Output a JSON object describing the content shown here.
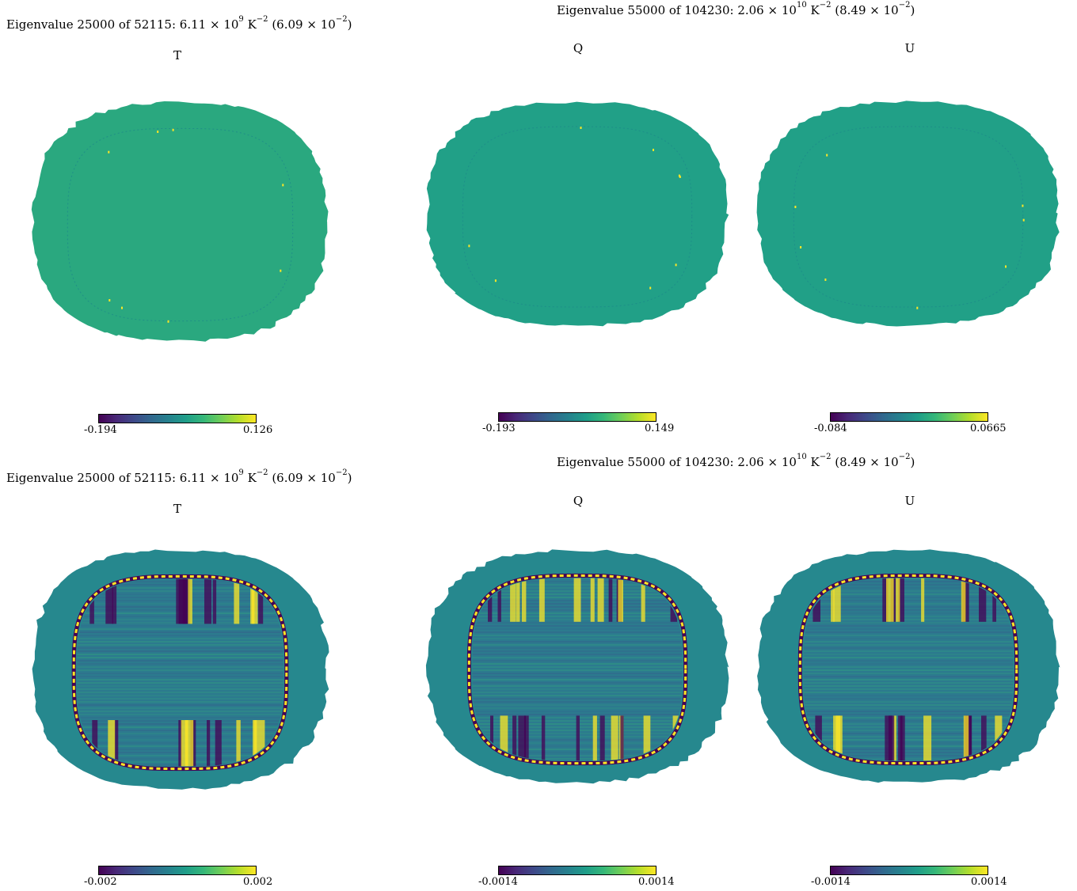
{
  "titles": {
    "row1_left": {
      "text": "Eigenvalue 25000 of 52115: 6.11",
      "times": "×",
      "base1": "10",
      "exp1": "9",
      "unit": "K",
      "exp_unit": "−2",
      "paren_open": "(6.09",
      "times2": "×",
      "base2": "10",
      "exp2": "−2",
      "paren_close": ")"
    },
    "row1_right": {
      "text": "Eigenvalue 55000 of 104230: 2.06",
      "times": "×",
      "base1": "10",
      "exp1": "10",
      "unit": "K",
      "exp_unit": "−2",
      "paren_open": "(8.49",
      "times2": "×",
      "base2": "10",
      "exp2": "−2",
      "paren_close": ")"
    },
    "row2_left": {
      "text": "Eigenvalue 25000 of 52115: 6.11",
      "times": "×",
      "base1": "10",
      "exp1": "9",
      "unit": "K",
      "exp_unit": "−2",
      "paren_open": "(6.09",
      "times2": "×",
      "base2": "10",
      "exp2": "−2",
      "paren_close": ")"
    },
    "row2_right": {
      "text": "Eigenvalue 55000 of 104230: 2.06",
      "times": "×",
      "base1": "10",
      "exp1": "10",
      "unit": "K",
      "exp_unit": "−2",
      "paren_open": "(8.49",
      "times2": "×",
      "base2": "10",
      "exp2": "−2",
      "paren_close": ")"
    }
  },
  "panels": {
    "r1_T": {
      "label": "T",
      "min": "-0.194",
      "max": "0.126"
    },
    "r1_Q": {
      "label": "Q",
      "min": "-0.193",
      "max": "0.149"
    },
    "r1_U": {
      "label": "U",
      "min": "-0.084",
      "max": "0.0665"
    },
    "r2_T": {
      "label": "T",
      "min": "-0.002",
      "max": "0.002"
    },
    "r2_Q": {
      "label": "Q",
      "min": "-0.0014",
      "max": "0.0014"
    },
    "r2_U": {
      "label": "U",
      "min": "-0.0014",
      "max": "0.0014"
    }
  },
  "colormap": "viridis",
  "colors": {
    "bg_r1_T": "#2aa87f",
    "bg_r1_QU": "#21a087",
    "bg_r2": "#26888e",
    "ring_dark": "#440154",
    "ring_bright": "#fde725",
    "interior_r2": "#2c7a8e"
  },
  "chart_data": [
    {
      "type": "heatmap",
      "title": "Eigenvalue 25000 of 52115: 6.11 × 10^9 K^−2 (6.09 × 10^−2)",
      "panels": [
        {
          "label": "T",
          "colorbar_range": [
            -0.194,
            0.126
          ]
        }
      ]
    },
    {
      "type": "heatmap",
      "title": "Eigenvalue 55000 of 104230: 2.06 × 10^10 K^−2 (8.49 × 10^−2)",
      "panels": [
        {
          "label": "Q",
          "colorbar_range": [
            -0.193,
            0.149
          ]
        },
        {
          "label": "U",
          "colorbar_range": [
            -0.084,
            0.0665
          ]
        }
      ]
    },
    {
      "type": "heatmap",
      "title": "Eigenvalue 25000 of 52115: 6.11 × 10^9 K^−2 (6.09 × 10^−2)",
      "panels": [
        {
          "label": "T",
          "colorbar_range": [
            -0.002,
            0.002
          ]
        }
      ]
    },
    {
      "type": "heatmap",
      "title": "Eigenvalue 55000 of 104230: 2.06 × 10^10 K^−2 (8.49 × 10^−2)",
      "panels": [
        {
          "label": "Q",
          "colorbar_range": [
            -0.0014,
            0.0014
          ]
        },
        {
          "label": "U",
          "colorbar_range": [
            -0.0014,
            0.0014
          ]
        }
      ]
    }
  ]
}
